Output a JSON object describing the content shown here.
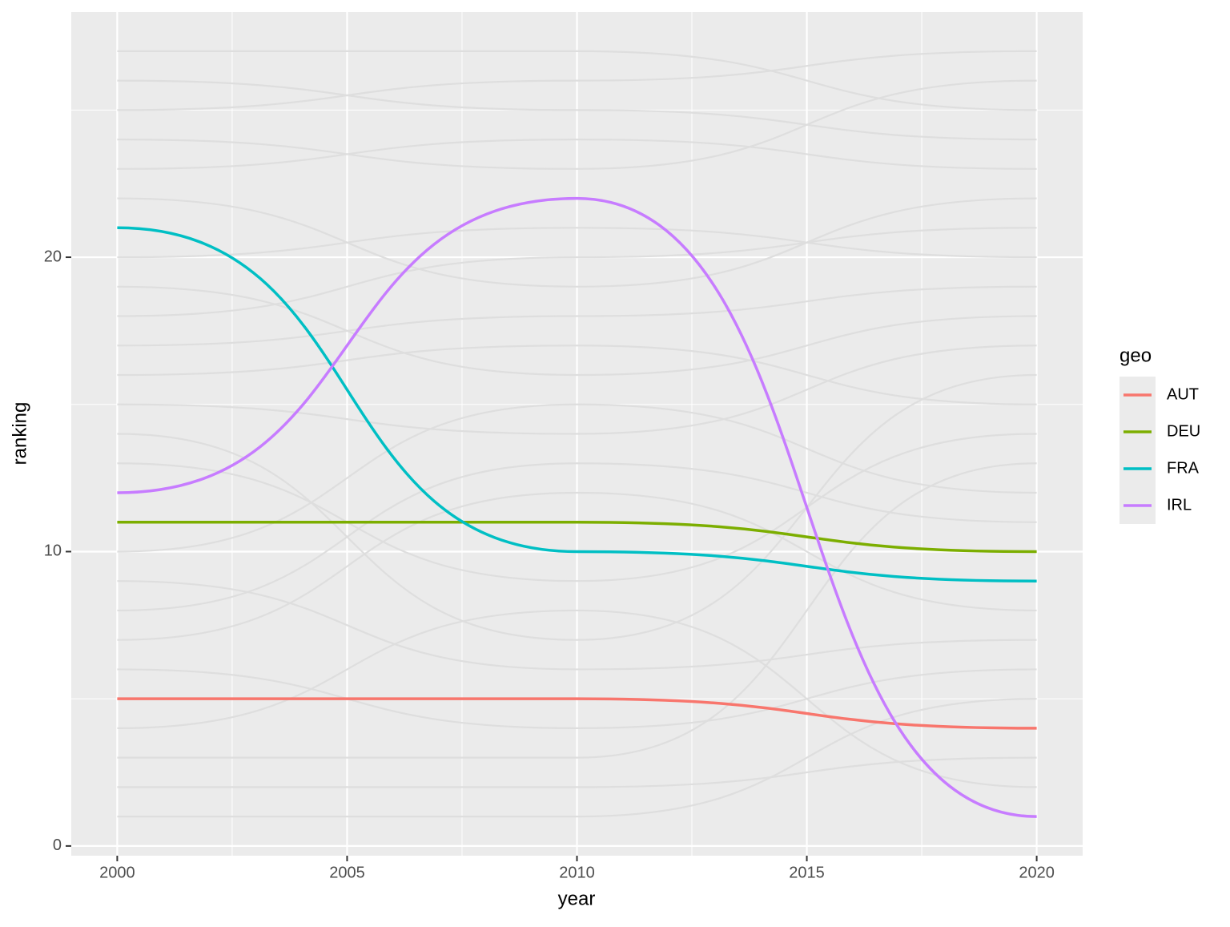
{
  "chart_data": {
    "type": "line",
    "x_label": "year",
    "y_label": "ranking",
    "x": [
      2000,
      2010,
      2020
    ],
    "xlim": [
      1999,
      2021
    ],
    "xticks": [
      2000,
      2005,
      2010,
      2015,
      2020
    ],
    "minor_xticks": [
      2002.5,
      2007.5,
      2012.5,
      2017.5
    ],
    "ylim": [
      -0.33,
      28.33
    ],
    "yticks": [
      0,
      10,
      20
    ],
    "minor_yticks": [
      5,
      15,
      25
    ],
    "grid": true,
    "legend_title": "geo",
    "legend_position": "right",
    "series": [
      {
        "name": "AUT",
        "color": "#f8766d",
        "values": [
          5,
          5,
          4
        ]
      },
      {
        "name": "DEU",
        "color": "#7cae00",
        "values": [
          11,
          11,
          10
        ]
      },
      {
        "name": "FRA",
        "color": "#00bfc4",
        "values": [
          21,
          10,
          9
        ]
      },
      {
        "name": "IRL",
        "color": "#c77cff",
        "values": [
          12,
          22,
          1
        ]
      }
    ],
    "background_color": "#dedede",
    "background_series": [
      {
        "values": [
          1,
          1,
          5
        ]
      },
      {
        "values": [
          2,
          2,
          3
        ]
      },
      {
        "values": [
          3,
          3,
          13
        ]
      },
      {
        "values": [
          4,
          8,
          2
        ]
      },
      {
        "values": [
          6,
          4,
          6
        ]
      },
      {
        "values": [
          7,
          12,
          8
        ]
      },
      {
        "values": [
          8,
          13,
          11
        ]
      },
      {
        "values": [
          9,
          6,
          7
        ]
      },
      {
        "values": [
          10,
          15,
          12
        ]
      },
      {
        "values": [
          13,
          9,
          14
        ]
      },
      {
        "values": [
          14,
          7,
          16
        ]
      },
      {
        "values": [
          15,
          14,
          17
        ]
      },
      {
        "values": [
          16,
          17,
          15
        ]
      },
      {
        "values": [
          17,
          18,
          19
        ]
      },
      {
        "values": [
          18,
          20,
          21
        ]
      },
      {
        "values": [
          19,
          16,
          18
        ]
      },
      {
        "values": [
          20,
          21,
          20
        ]
      },
      {
        "values": [
          22,
          19,
          22
        ]
      },
      {
        "values": [
          23,
          24,
          23
        ]
      },
      {
        "values": [
          24,
          23,
          26
        ]
      },
      {
        "values": [
          25,
          26,
          27
        ]
      },
      {
        "values": [
          26,
          25,
          24
        ]
      },
      {
        "values": [
          27,
          27,
          25
        ]
      }
    ]
  }
}
